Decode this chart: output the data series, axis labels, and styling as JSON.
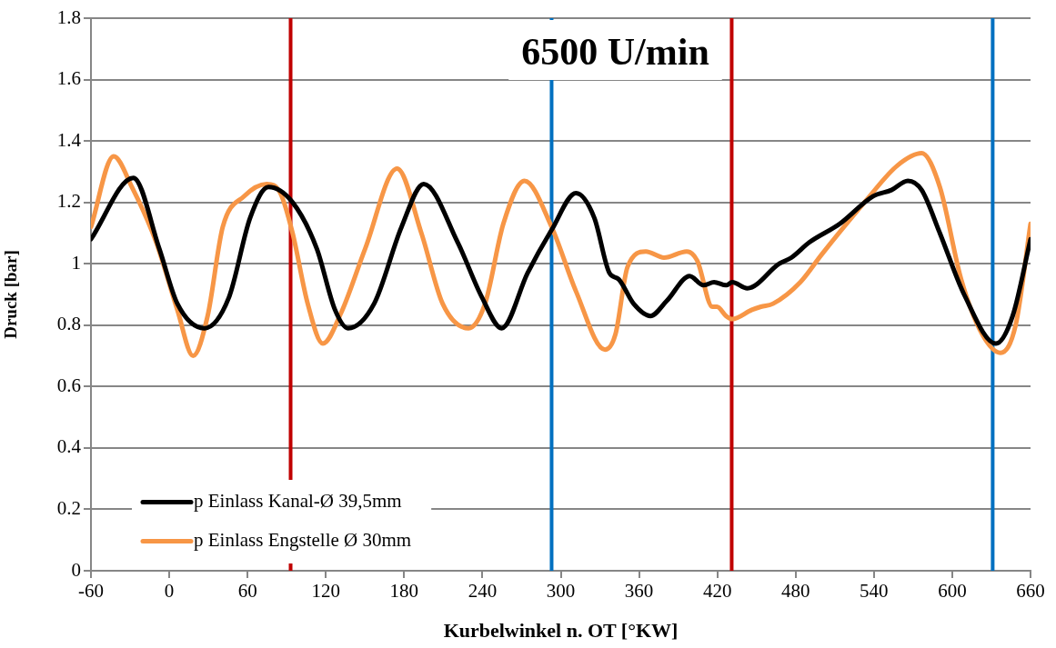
{
  "chart_data": {
    "type": "line",
    "title": "6500 U/min",
    "xlabel": "Kurbelwinkel n. OT [°KW]",
    "ylabel": "Druck [bar]",
    "xlim": [
      -60,
      660
    ],
    "xticks": [
      -60,
      0,
      60,
      120,
      180,
      240,
      300,
      360,
      420,
      480,
      540,
      600,
      660
    ],
    "ylim": [
      0,
      1.8
    ],
    "yticks": [
      0,
      0.2,
      0.4,
      0.6,
      0.8,
      1,
      1.2,
      1.4,
      1.6,
      1.8
    ],
    "grid": "y",
    "legend": "bottom left",
    "marker": "none",
    "line_style": "solid",
    "ref_lines": [
      {
        "axis": "x",
        "value": 93,
        "color": "#c00000"
      },
      {
        "axis": "x",
        "value": 293,
        "color": "#0070c0"
      },
      {
        "axis": "x",
        "value": 431,
        "color": "#c00000"
      },
      {
        "axis": "x",
        "value": 631,
        "color": "#0070c0"
      }
    ],
    "series": [
      {
        "name": "p Einlass Kanal-Ø 39,5mm",
        "color": "#000000",
        "x": [
          -60,
          -27.5,
          -7.7,
          6.2,
          27,
          45.7,
          62,
          76,
          94.5,
          113,
          127,
          137,
          157,
          178,
          195,
          221,
          239.7,
          254.8,
          274.6,
          293,
          311.7,
          325.7,
          337.3,
          344.3,
          355.8,
          368.7,
          381.4,
          398.8,
          409.3,
          417.5,
          426.7,
          431.4,
          443,
          467.4,
          476.7,
          490.6,
          513.8,
          539.4,
          553.4,
          566,
          576.6,
          590.5,
          609.1,
          633.5,
          646.3,
          660
        ],
        "values": [
          1.08,
          1.28,
          1.05,
          0.87,
          0.79,
          0.89,
          1.15,
          1.25,
          1.2,
          1.05,
          0.85,
          0.79,
          0.87,
          1.12,
          1.26,
          1.07,
          0.89,
          0.79,
          0.97,
          1.11,
          1.23,
          1.15,
          0.97,
          0.95,
          0.87,
          0.83,
          0.88,
          0.96,
          0.93,
          0.94,
          0.93,
          0.94,
          0.92,
          1.0,
          1.02,
          1.07,
          1.13,
          1.22,
          1.24,
          1.27,
          1.24,
          1.1,
          0.9,
          0.74,
          0.83,
          1.08
        ]
      },
      {
        "name": "p Einlass Engstelle Ø 30mm",
        "color": "#f79646",
        "x": [
          -60,
          -42.6,
          -28.6,
          -10,
          6.2,
          18.3,
          29.4,
          41,
          57.3,
          74.7,
          85.2,
          94.5,
          106.1,
          117.7,
          131.7,
          150.2,
          174.6,
          193.2,
          209.5,
          229.3,
          242,
          256,
          272.2,
          293,
          311.7,
          333.9,
          341.9,
          351.2,
          365.2,
          379.1,
          396.5,
          404.6,
          416.2,
          419.7,
          426.7,
          431.4,
          446.5,
          453.4,
          462.7,
          483.6,
          499.9,
          534.7,
          558,
          576.6,
          590.5,
          606.8,
          623,
          637,
          648.6,
          660
        ],
        "values": [
          1.12,
          1.35,
          1.25,
          1.07,
          0.85,
          0.7,
          0.83,
          1.12,
          1.22,
          1.26,
          1.23,
          1.1,
          0.87,
          0.74,
          0.84,
          1.05,
          1.31,
          1.1,
          0.87,
          0.79,
          0.87,
          1.13,
          1.27,
          1.12,
          0.91,
          0.72,
          0.77,
          0.99,
          1.04,
          1.02,
          1.04,
          1.01,
          0.86,
          0.86,
          0.83,
          0.82,
          0.85,
          0.86,
          0.87,
          0.94,
          1.03,
          1.21,
          1.32,
          1.36,
          1.25,
          0.95,
          0.77,
          0.71,
          0.8,
          1.13
        ]
      }
    ]
  }
}
